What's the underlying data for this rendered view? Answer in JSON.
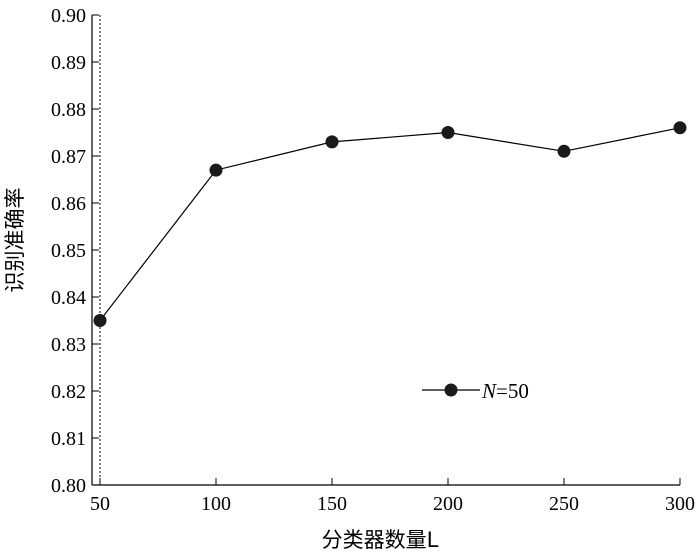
{
  "chart_data": {
    "type": "line",
    "x": [
      50,
      100,
      150,
      200,
      250,
      300
    ],
    "series": [
      {
        "name": "N=50",
        "values": [
          0.835,
          0.867,
          0.873,
          0.875,
          0.871,
          0.876
        ]
      }
    ],
    "xlabel": "分类器数量L",
    "ylabel": "识别准确率",
    "xlim": [
      50,
      300
    ],
    "ylim": [
      0.8,
      0.9
    ],
    "xticks": [
      "50",
      "100",
      "150",
      "200",
      "250",
      "300"
    ],
    "yticks": [
      "0.80",
      "0.81",
      "0.82",
      "0.83",
      "0.84",
      "0.85",
      "0.86",
      "0.87",
      "0.88",
      "0.89",
      "0.90"
    ],
    "grid": false,
    "legend": {
      "position": "lower-right",
      "entries": [
        {
          "prefix": "N",
          "suffix": "=50"
        }
      ]
    },
    "reference_line": {
      "x": 50,
      "style": "dotted"
    },
    "colors": {
      "series": "#000000"
    }
  }
}
